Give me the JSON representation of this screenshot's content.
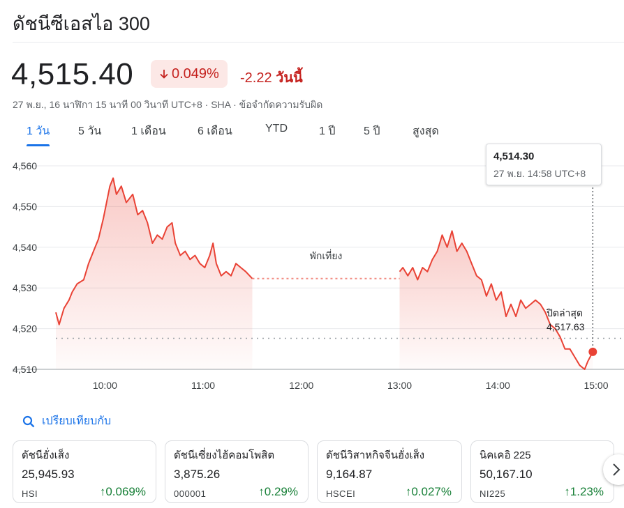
{
  "header": {
    "title": "ดัชนีซีเอสไอ 300"
  },
  "quote": {
    "price": "4,515.40",
    "change_percent": "0.049%",
    "change_value": "-2.22",
    "change_period": "วันนี้",
    "meta": "27 พ.ย., 16 นาฬิกา 15 นาที 00 วินาที UTC+8 · SHA · ข้อจำกัดความรับผิด",
    "direction_icon": "arrow-down-icon"
  },
  "tabs": [
    {
      "label": "1 วัน",
      "active": true
    },
    {
      "label": "5 วัน"
    },
    {
      "label": "1 เดือน"
    },
    {
      "label": "6 เดือน"
    },
    {
      "label": "YTD"
    },
    {
      "label": "1 ปี"
    },
    {
      "label": "5 ปี"
    },
    {
      "label": "สูงสุด"
    }
  ],
  "tooltip": {
    "value": "4,514.30",
    "datetime": "27 พ.ย. 14:58 UTC+8"
  },
  "chart_data": {
    "type": "area",
    "ylim": [
      4508,
      4563
    ],
    "y_ticks": [
      4510,
      4520,
      4530,
      4540,
      4550,
      4560
    ],
    "y_tick_labels": [
      "4,510",
      "4,520",
      "4,530",
      "4,540",
      "4,550",
      "4,560"
    ],
    "x_ticks": [
      "10:00",
      "11:00",
      "12:00",
      "13:00",
      "14:00",
      "15:00"
    ],
    "lunch_label": "พักเที่ยง",
    "previous_close_label": "ปิดล่าสุด",
    "previous_close_value": "4,517.63",
    "previous_close": 4517.63,
    "series": [
      {
        "color": "#e94235",
        "morning": [
          [
            "09:30",
            4524
          ],
          [
            "09:32",
            4521
          ],
          [
            "09:35",
            4525
          ],
          [
            "09:38",
            4527
          ],
          [
            "09:40",
            4529
          ],
          [
            "09:43",
            4531
          ],
          [
            "09:47",
            4532
          ],
          [
            "09:50",
            4536
          ],
          [
            "09:53",
            4539
          ],
          [
            "09:56",
            4542
          ],
          [
            "09:59",
            4547
          ],
          [
            "10:01",
            4551
          ],
          [
            "10:03",
            4555
          ],
          [
            "10:05",
            4557
          ],
          [
            "10:07",
            4553
          ],
          [
            "10:10",
            4555
          ],
          [
            "10:13",
            4551
          ],
          [
            "10:17",
            4553
          ],
          [
            "10:20",
            4548
          ],
          [
            "10:23",
            4549
          ],
          [
            "10:26",
            4546
          ],
          [
            "10:29",
            4541
          ],
          [
            "10:32",
            4543
          ],
          [
            "10:35",
            4542
          ],
          [
            "10:38",
            4545
          ],
          [
            "10:41",
            4546
          ],
          [
            "10:43",
            4541
          ],
          [
            "10:46",
            4538
          ],
          [
            "10:49",
            4539
          ],
          [
            "10:52",
            4537
          ],
          [
            "10:55",
            4538
          ],
          [
            "10:58",
            4536
          ],
          [
            "11:01",
            4535
          ],
          [
            "11:04",
            4538
          ],
          [
            "11:06",
            4541
          ],
          [
            "11:08",
            4536
          ],
          [
            "11:11",
            4533
          ],
          [
            "11:14",
            4534
          ],
          [
            "11:17",
            4533
          ],
          [
            "11:20",
            4536
          ],
          [
            "11:23",
            4535
          ],
          [
            "11:26",
            4534
          ],
          [
            "11:30",
            4532.3
          ]
        ],
        "afternoon": [
          [
            "13:00",
            4534
          ],
          [
            "13:02",
            4535
          ],
          [
            "13:05",
            4533
          ],
          [
            "13:08",
            4535
          ],
          [
            "13:11",
            4532
          ],
          [
            "13:14",
            4535
          ],
          [
            "13:17",
            4534
          ],
          [
            "13:20",
            4537
          ],
          [
            "13:23",
            4539
          ],
          [
            "13:26",
            4543
          ],
          [
            "13:29",
            4540
          ],
          [
            "13:32",
            4544
          ],
          [
            "13:35",
            4539
          ],
          [
            "13:38",
            4541
          ],
          [
            "13:41",
            4539
          ],
          [
            "13:44",
            4536
          ],
          [
            "13:47",
            4533
          ],
          [
            "13:50",
            4532
          ],
          [
            "13:53",
            4528
          ],
          [
            "13:56",
            4531
          ],
          [
            "13:59",
            4527
          ],
          [
            "14:02",
            4529
          ],
          [
            "14:05",
            4523
          ],
          [
            "14:08",
            4526
          ],
          [
            "14:11",
            4523
          ],
          [
            "14:14",
            4527
          ],
          [
            "14:17",
            4525
          ],
          [
            "14:20",
            4526
          ],
          [
            "14:23",
            4527
          ],
          [
            "14:26",
            4526
          ],
          [
            "14:29",
            4524
          ],
          [
            "14:32",
            4521
          ],
          [
            "14:35",
            4520
          ],
          [
            "14:38",
            4518
          ],
          [
            "14:41",
            4515
          ],
          [
            "14:44",
            4515
          ],
          [
            "14:47",
            4513
          ],
          [
            "14:50",
            4511
          ],
          [
            "14:53",
            4510
          ],
          [
            "14:55",
            4512
          ],
          [
            "14:58",
            4514.3
          ]
        ]
      }
    ]
  },
  "compare": {
    "label": "เปรียบเทียบกับ"
  },
  "cards": [
    {
      "name": "ดัชนีฮั่งเส็ง",
      "value": "25,945.93",
      "symbol": "HSI",
      "change": "0.069%"
    },
    {
      "name": "ดัชนีเซี่ยงไฮ้คอมโพสิต",
      "value": "3,875.26",
      "symbol": "000001",
      "change": "0.29%"
    },
    {
      "name": "ดัชนีวิสาหกิจจีนฮั่งเส็ง",
      "value": "9,164.87",
      "symbol": "HSCEI",
      "change": "0.027%"
    },
    {
      "name": "นิคเคอิ 225",
      "value": "50,167.10",
      "symbol": "NI225",
      "change": "1.23%"
    }
  ],
  "colors": {
    "down": "#c5221f",
    "up": "#188038",
    "accent": "#1a73e8",
    "line": "#e94235"
  }
}
